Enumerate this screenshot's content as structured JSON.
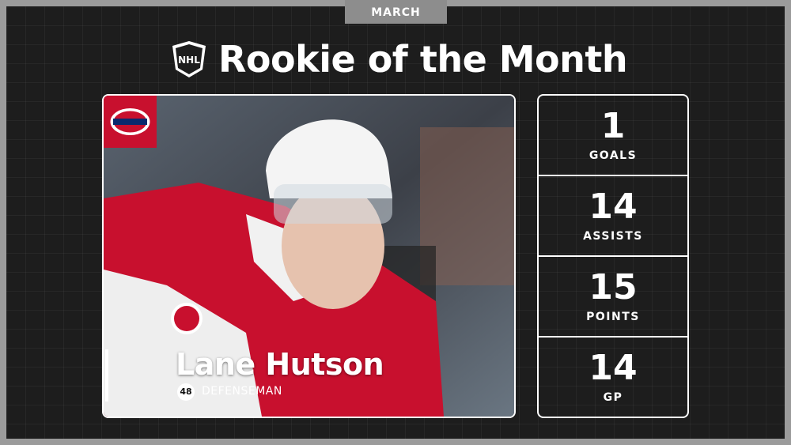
{
  "header": {
    "tab": "MARCH",
    "title": "Rookie of the Month",
    "logo": "NHL"
  },
  "player": {
    "name": "Lane Hutson",
    "number": 48,
    "position": "DEFENSEMAN"
  },
  "stats": [
    {
      "value": 1,
      "label": "GOALS"
    },
    {
      "value": 14,
      "label": "ASSISTS"
    },
    {
      "value": 15,
      "label": "POINTS"
    },
    {
      "value": 14,
      "label": "GP"
    }
  ]
}
